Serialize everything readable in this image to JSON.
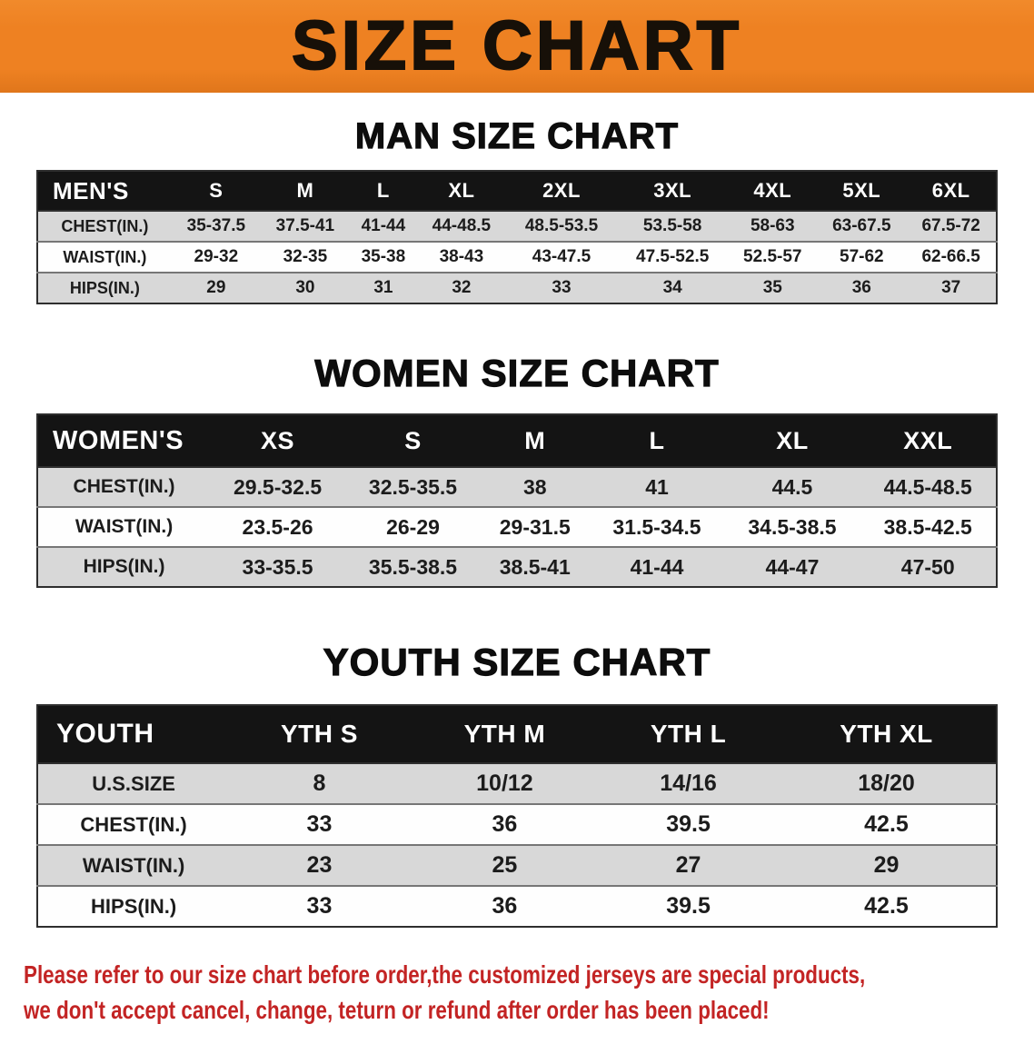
{
  "banner": {
    "title": "SIZE CHART"
  },
  "colors": {
    "banner_bg": "#ee8122",
    "banner_text": "#171008",
    "table_header_bg": "#141414",
    "table_stripe_bg": "#d8d8d8",
    "notice_text": "#c32424"
  },
  "sections": [
    {
      "id": "men",
      "heading": "MAN SIZE CHART",
      "table": {
        "header": [
          "MEN'S",
          "S",
          "M",
          "L",
          "XL",
          "2XL",
          "3XL",
          "4XL",
          "5XL",
          "6XL"
        ],
        "rows": [
          [
            "CHEST(IN.)",
            "35-37.5",
            "37.5-41",
            "41-44",
            "44-48.5",
            "48.5-53.5",
            "53.5-58",
            "58-63",
            "63-67.5",
            "67.5-72"
          ],
          [
            "WAIST(IN.)",
            "29-32",
            "32-35",
            "35-38",
            "38-43",
            "43-47.5",
            "47.5-52.5",
            "52.5-57",
            "57-62",
            "62-66.5"
          ],
          [
            "HIPS(IN.)",
            "29",
            "30",
            "31",
            "32",
            "33",
            "34",
            "35",
            "36",
            "37"
          ]
        ]
      }
    },
    {
      "id": "women",
      "heading": "WOMEN SIZE CHART",
      "table": {
        "header": [
          "WOMEN'S",
          "XS",
          "S",
          "M",
          "L",
          "XL",
          "XXL"
        ],
        "rows": [
          [
            "CHEST(IN.)",
            "29.5-32.5",
            "32.5-35.5",
            "38",
            "41",
            "44.5",
            "44.5-48.5"
          ],
          [
            "WAIST(IN.)",
            "23.5-26",
            "26-29",
            "29-31.5",
            "31.5-34.5",
            "34.5-38.5",
            "38.5-42.5"
          ],
          [
            "HIPS(IN.)",
            "33-35.5",
            "35.5-38.5",
            "38.5-41",
            "41-44",
            "44-47",
            "47-50"
          ]
        ]
      }
    },
    {
      "id": "youth",
      "heading": "YOUTH SIZE CHART",
      "table": {
        "header": [
          "YOUTH",
          "YTH S",
          "YTH M",
          "YTH L",
          "YTH XL"
        ],
        "rows": [
          [
            "U.S.SIZE",
            "8",
            "10/12",
            "14/16",
            "18/20"
          ],
          [
            "CHEST(IN.)",
            "33",
            "36",
            "39.5",
            "42.5"
          ],
          [
            "WAIST(IN.)",
            "23",
            "25",
            "27",
            "29"
          ],
          [
            "HIPS(IN.)",
            "33",
            "36",
            "39.5",
            "42.5"
          ]
        ]
      }
    }
  ],
  "footer": {
    "lines": [
      "Please refer to our size chart before order,the customized jerseys are special products,",
      "we don't accept cancel, change, teturn or refund after order has been placed!"
    ]
  }
}
